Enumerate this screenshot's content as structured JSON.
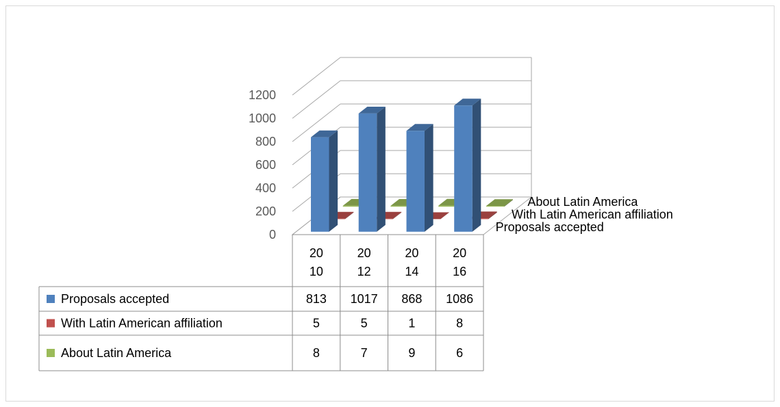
{
  "chart_data": {
    "type": "bar",
    "categories": [
      "20 10",
      "20 12",
      "20 14",
      "20 16"
    ],
    "series": [
      {
        "name": "Proposals accepted",
        "values": [
          813,
          1017,
          868,
          1086
        ],
        "color": "#4F81BD"
      },
      {
        "name": "With Latin American affiliation",
        "values": [
          5,
          5,
          1,
          8
        ],
        "color": "#C0504D"
      },
      {
        "name": "About Latin America",
        "values": [
          8,
          7,
          9,
          6
        ],
        "color": "#9BBB59"
      }
    ],
    "y_ticks": [
      "0",
      "200",
      "400",
      "600",
      "800",
      "1000",
      "1200"
    ],
    "ylim": [
      0,
      1200
    ],
    "depth_labels": [
      "Proposals accepted",
      "With Latin American affiliation",
      "About Latin America"
    ],
    "data_table": true,
    "grid": true,
    "title": "",
    "xlabel": "",
    "ylabel": ""
  }
}
